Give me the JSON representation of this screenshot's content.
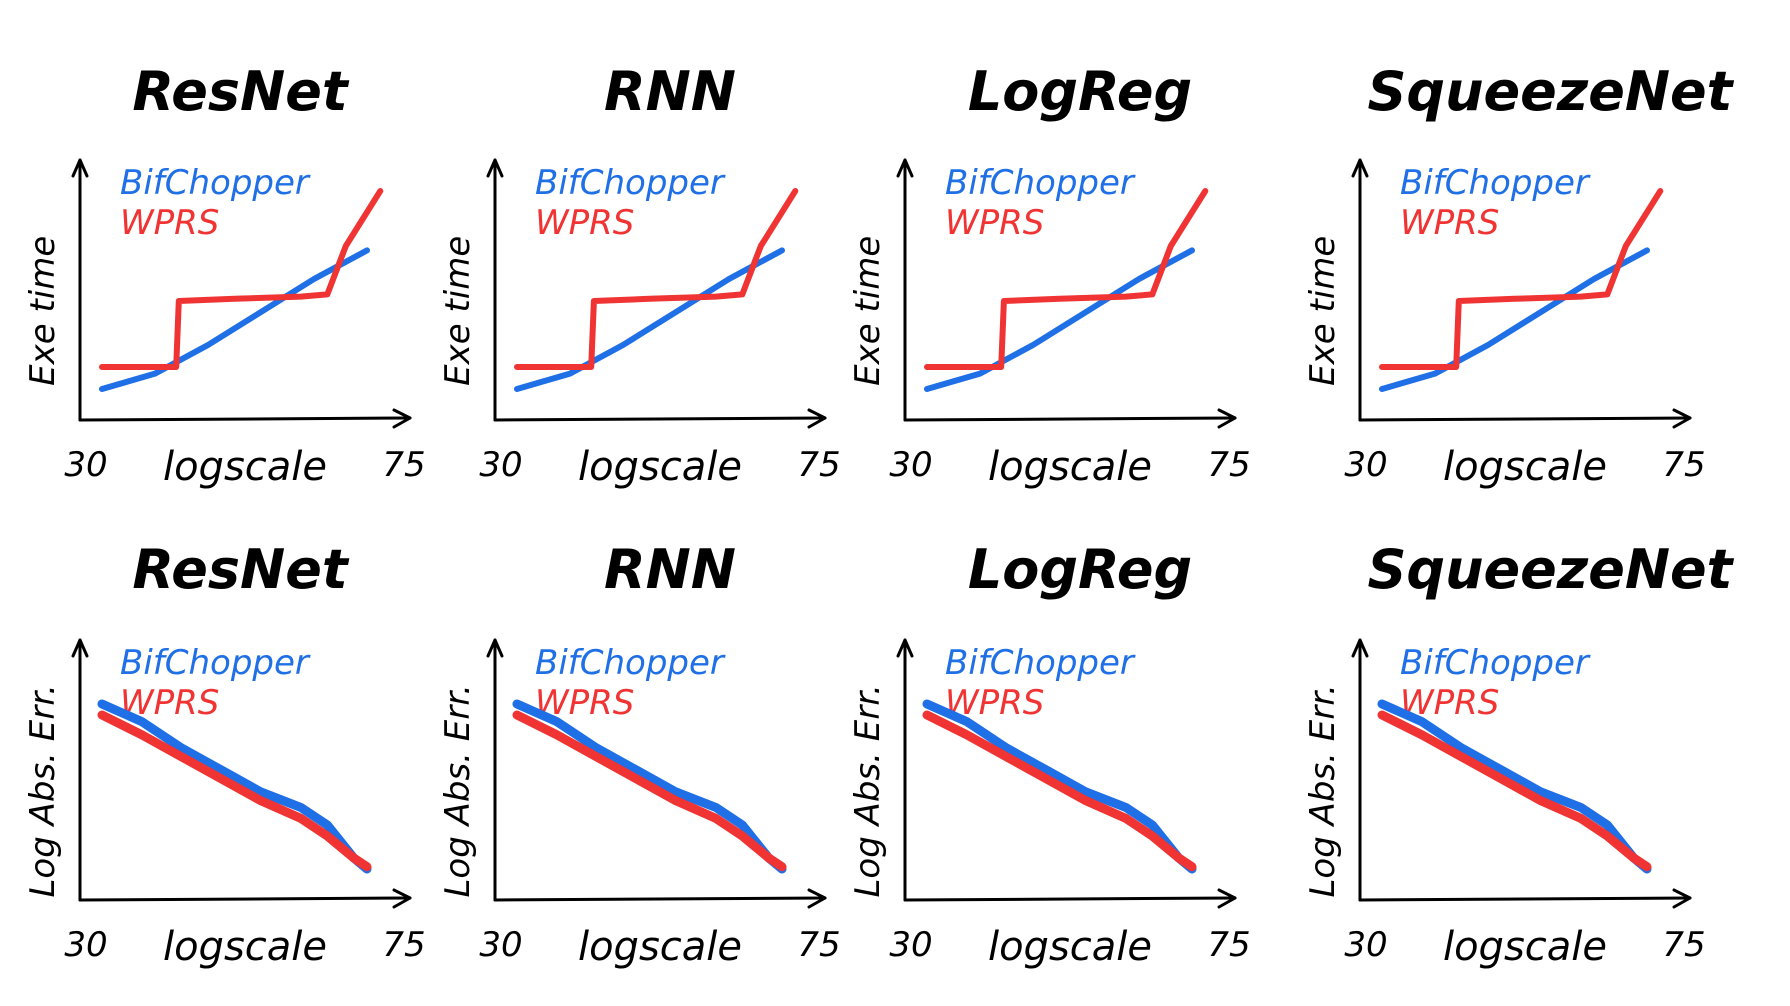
{
  "colors": {
    "bifchopper": "#1f6fe6",
    "wprs": "#f03333",
    "ink": "#000000"
  },
  "chart_data": [
    {
      "type": "line",
      "title": "ResNet",
      "xlabel": "logscale",
      "ylabel": "Exe time",
      "x_tick_labels": [
        "30",
        "75"
      ],
      "legend": [
        "BifChopper",
        "WPRS"
      ],
      "legend_placement": "top-left",
      "series": [
        {
          "name": "BifChopper",
          "x": [
            0,
            0.2,
            0.4,
            0.6,
            0.8,
            1.0
          ],
          "y": [
            0.05,
            0.12,
            0.25,
            0.4,
            0.55,
            0.68
          ]
        },
        {
          "name": "WPRS",
          "x": [
            0,
            0.2,
            0.28,
            0.29,
            0.5,
            0.75,
            0.85,
            0.92,
            1.05
          ],
          "y": [
            0.15,
            0.15,
            0.15,
            0.45,
            0.46,
            0.47,
            0.48,
            0.7,
            0.95
          ]
        }
      ]
    },
    {
      "type": "line",
      "title": "RNN",
      "xlabel": "logscale",
      "ylabel": "Exe time",
      "x_tick_labels": [
        "30",
        "75"
      ],
      "legend": [
        "BifChopper",
        "WPRS"
      ],
      "legend_placement": "top-left",
      "series": [
        {
          "name": "BifChopper",
          "x": [
            0,
            0.2,
            0.4,
            0.6,
            0.8,
            1.0
          ],
          "y": [
            0.05,
            0.12,
            0.25,
            0.4,
            0.55,
            0.68
          ]
        },
        {
          "name": "WPRS",
          "x": [
            0,
            0.2,
            0.28,
            0.29,
            0.5,
            0.75,
            0.85,
            0.92,
            1.05
          ],
          "y": [
            0.15,
            0.15,
            0.15,
            0.45,
            0.46,
            0.47,
            0.48,
            0.7,
            0.95
          ]
        }
      ]
    },
    {
      "type": "line",
      "title": "LogReg",
      "xlabel": "logscale",
      "ylabel": "Exe time",
      "x_tick_labels": [
        "30",
        "75"
      ],
      "legend": [
        "BifChopper",
        "WPRS"
      ],
      "legend_placement": "top-left",
      "series": [
        {
          "name": "BifChopper",
          "x": [
            0,
            0.2,
            0.4,
            0.6,
            0.8,
            1.0
          ],
          "y": [
            0.05,
            0.12,
            0.25,
            0.4,
            0.55,
            0.68
          ]
        },
        {
          "name": "WPRS",
          "x": [
            0,
            0.2,
            0.28,
            0.29,
            0.5,
            0.75,
            0.85,
            0.92,
            1.05
          ],
          "y": [
            0.15,
            0.15,
            0.15,
            0.45,
            0.46,
            0.47,
            0.48,
            0.7,
            0.95
          ]
        }
      ]
    },
    {
      "type": "line",
      "title": "SqueezeNet",
      "xlabel": "logscale",
      "ylabel": "Exe time",
      "x_tick_labels": [
        "30",
        "75"
      ],
      "legend": [
        "BifChopper",
        "WPRS"
      ],
      "legend_placement": "top-left",
      "series": [
        {
          "name": "BifChopper",
          "x": [
            0,
            0.2,
            0.4,
            0.6,
            0.8,
            1.0
          ],
          "y": [
            0.05,
            0.12,
            0.25,
            0.4,
            0.55,
            0.68
          ]
        },
        {
          "name": "WPRS",
          "x": [
            0,
            0.2,
            0.28,
            0.29,
            0.5,
            0.75,
            0.85,
            0.92,
            1.05
          ],
          "y": [
            0.15,
            0.15,
            0.15,
            0.45,
            0.46,
            0.47,
            0.48,
            0.7,
            0.95
          ]
        }
      ]
    },
    {
      "type": "line",
      "title": "ResNet",
      "xlabel": "logscale",
      "ylabel": "Log Abs. Err.",
      "x_tick_labels": [
        "30",
        "75"
      ],
      "legend": [
        "BifChopper",
        "WPRS"
      ],
      "legend_placement": "top-left",
      "series": [
        {
          "name": "BifChopper",
          "x": [
            0,
            0.15,
            0.3,
            0.45,
            0.6,
            0.75,
            0.85,
            0.95,
            1.0
          ],
          "y": [
            0.8,
            0.72,
            0.6,
            0.5,
            0.4,
            0.33,
            0.25,
            0.1,
            0.05
          ]
        },
        {
          "name": "WPRS",
          "x": [
            0,
            0.15,
            0.3,
            0.45,
            0.6,
            0.75,
            0.85,
            0.95,
            1.0
          ],
          "y": [
            0.75,
            0.66,
            0.56,
            0.46,
            0.36,
            0.28,
            0.2,
            0.1,
            0.06
          ]
        }
      ]
    },
    {
      "type": "line",
      "title": "RNN",
      "xlabel": "logscale",
      "ylabel": "Log Abs. Err.",
      "x_tick_labels": [
        "30",
        "75"
      ],
      "legend": [
        "BifChopper",
        "WPRS"
      ],
      "legend_placement": "top-left",
      "series": [
        {
          "name": "BifChopper",
          "x": [
            0,
            0.15,
            0.3,
            0.45,
            0.6,
            0.75,
            0.85,
            0.95,
            1.0
          ],
          "y": [
            0.8,
            0.72,
            0.6,
            0.5,
            0.4,
            0.33,
            0.25,
            0.1,
            0.05
          ]
        },
        {
          "name": "WPRS",
          "x": [
            0,
            0.15,
            0.3,
            0.45,
            0.6,
            0.75,
            0.85,
            0.95,
            1.0
          ],
          "y": [
            0.75,
            0.66,
            0.56,
            0.46,
            0.36,
            0.28,
            0.2,
            0.1,
            0.06
          ]
        }
      ]
    },
    {
      "type": "line",
      "title": "LogReg",
      "xlabel": "logscale",
      "ylabel": "Log Abs. Err.",
      "x_tick_labels": [
        "30",
        "75"
      ],
      "legend": [
        "BifChopper",
        "WPRS"
      ],
      "legend_placement": "top-left",
      "series": [
        {
          "name": "BifChopper",
          "x": [
            0,
            0.15,
            0.3,
            0.45,
            0.6,
            0.75,
            0.85,
            0.95,
            1.0
          ],
          "y": [
            0.8,
            0.72,
            0.6,
            0.5,
            0.4,
            0.33,
            0.25,
            0.1,
            0.05
          ]
        },
        {
          "name": "WPRS",
          "x": [
            0,
            0.15,
            0.3,
            0.45,
            0.6,
            0.75,
            0.85,
            0.95,
            1.0
          ],
          "y": [
            0.75,
            0.66,
            0.56,
            0.46,
            0.36,
            0.28,
            0.2,
            0.1,
            0.06
          ]
        }
      ]
    },
    {
      "type": "line",
      "title": "SqueezeNet",
      "xlabel": "logscale",
      "ylabel": "Log Abs. Err.",
      "x_tick_labels": [
        "30",
        "75"
      ],
      "legend": [
        "BifChopper",
        "WPRS"
      ],
      "legend_placement": "top-left",
      "series": [
        {
          "name": "BifChopper",
          "x": [
            0,
            0.15,
            0.3,
            0.45,
            0.6,
            0.75,
            0.85,
            0.95,
            1.0
          ],
          "y": [
            0.8,
            0.72,
            0.6,
            0.5,
            0.4,
            0.33,
            0.25,
            0.1,
            0.05
          ]
        },
        {
          "name": "WPRS",
          "x": [
            0,
            0.15,
            0.3,
            0.45,
            0.6,
            0.75,
            0.85,
            0.95,
            1.0
          ],
          "y": [
            0.75,
            0.66,
            0.56,
            0.46,
            0.36,
            0.28,
            0.2,
            0.1,
            0.06
          ]
        }
      ]
    }
  ]
}
